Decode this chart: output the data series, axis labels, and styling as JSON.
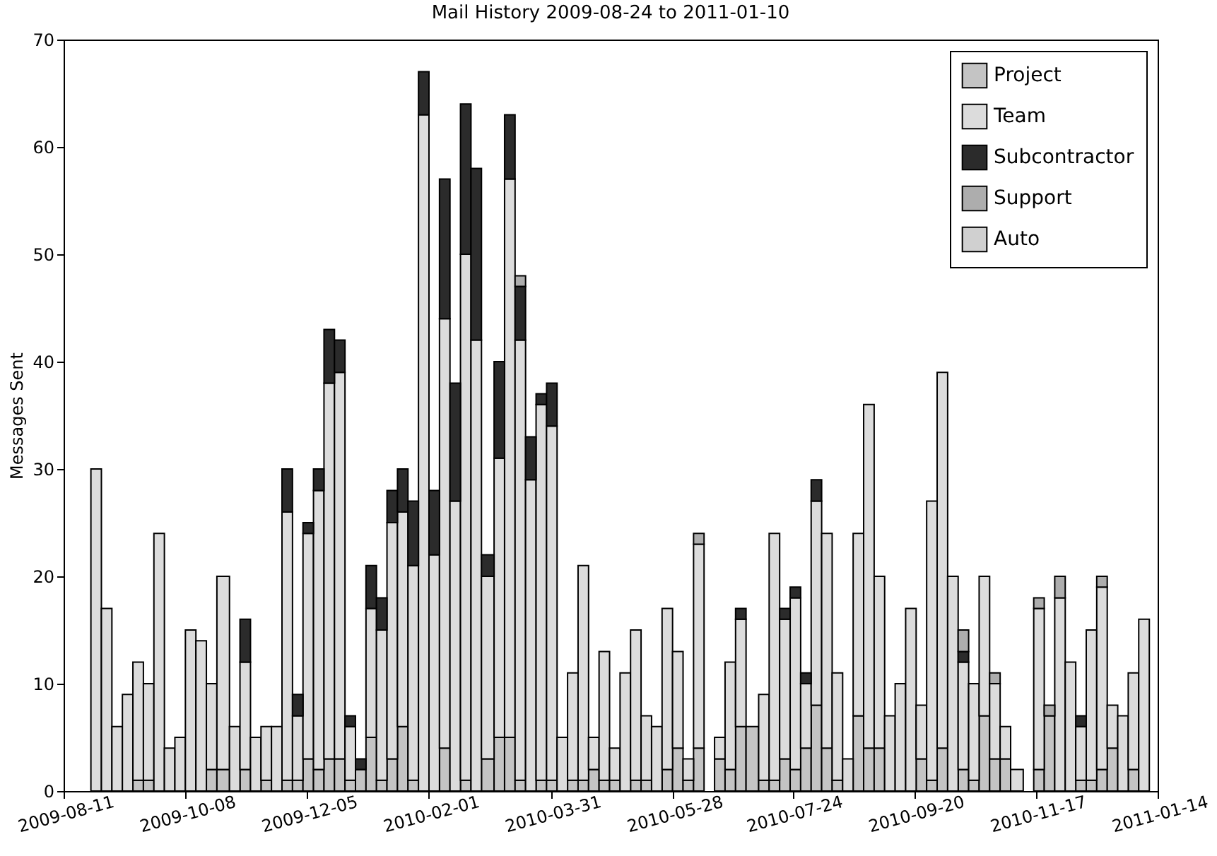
{
  "chart_data": {
    "type": "bar",
    "title": "Mail History 2009-08-24 to 2011-01-10",
    "ylabel": "Messages Sent",
    "stacked": true,
    "legend": "top right",
    "grid": false,
    "x": [
      "2009-08-24",
      "2009-08-29",
      "2009-09-03",
      "2009-09-08",
      "2009-09-13",
      "2009-09-18",
      "2009-09-23",
      "2009-09-28",
      "2009-10-03",
      "2009-10-08",
      "2009-10-13",
      "2009-10-18",
      "2009-10-23",
      "2009-10-29",
      "2009-11-03",
      "2009-11-08",
      "2009-11-13",
      "2009-11-18",
      "2009-11-23",
      "2009-11-28",
      "2009-12-03",
      "2009-12-08",
      "2009-12-13",
      "2009-12-18",
      "2009-12-23",
      "2009-12-28",
      "2010-01-02",
      "2010-01-07",
      "2010-01-12",
      "2010-01-17",
      "2010-01-22",
      "2010-01-27",
      "2010-02-01",
      "2010-02-06",
      "2010-02-11",
      "2010-02-16",
      "2010-02-21",
      "2010-02-26",
      "2010-03-04",
      "2010-03-09",
      "2010-03-14",
      "2010-03-19",
      "2010-03-24",
      "2010-03-29",
      "2010-04-03",
      "2010-04-08",
      "2010-04-13",
      "2010-04-18",
      "2010-04-23",
      "2010-04-28",
      "2010-05-03",
      "2010-05-08",
      "2010-05-13",
      "2010-05-18",
      "2010-05-23",
      "2010-05-28",
      "2010-06-02",
      "2010-06-07",
      "2010-06-12",
      "2010-06-17",
      "2010-06-22",
      "2010-06-27",
      "2010-07-02",
      "2010-07-08",
      "2010-07-13",
      "2010-07-18",
      "2010-07-23",
      "2010-07-28",
      "2010-08-02",
      "2010-08-07",
      "2010-08-12",
      "2010-08-17",
      "2010-08-22",
      "2010-08-27",
      "2010-09-01",
      "2010-09-06",
      "2010-09-11",
      "2010-09-16",
      "2010-09-21",
      "2010-09-26",
      "2010-10-01",
      "2010-10-06",
      "2010-10-11",
      "2010-10-16",
      "2010-10-21",
      "2010-10-26",
      "2010-10-31",
      "2010-11-05",
      "2010-11-11",
      "2010-11-16",
      "2010-11-21",
      "2010-11-26",
      "2010-12-01",
      "2010-12-06",
      "2010-12-11",
      "2010-12-16",
      "2010-12-21",
      "2010-12-26",
      "2010-12-31",
      "2011-01-05"
    ],
    "series": [
      {
        "name": "Project",
        "color": "#c4c4c4",
        "values": [
          0,
          0,
          0,
          0,
          1,
          1,
          0,
          0,
          0,
          0,
          0,
          2,
          2,
          0,
          2,
          0,
          1,
          0,
          1,
          1,
          3,
          2,
          3,
          3,
          1,
          2,
          5,
          1,
          3,
          6,
          1,
          0,
          0,
          4,
          0,
          1,
          0,
          3,
          5,
          5,
          1,
          0,
          1,
          1,
          0,
          1,
          1,
          2,
          1,
          1,
          0,
          1,
          1,
          0,
          2,
          4,
          1,
          4,
          0,
          3,
          2,
          6,
          6,
          1,
          1,
          3,
          2,
          4,
          8,
          4,
          1,
          0,
          7,
          4,
          4,
          0,
          0,
          0,
          3,
          1,
          4,
          0,
          2,
          1,
          7,
          3,
          3,
          0,
          0,
          2,
          7,
          0,
          0,
          1,
          1,
          2,
          4,
          0,
          2,
          0
        ]
      },
      {
        "name": "Team",
        "color": "#dcdcdc",
        "values": [
          30,
          17,
          6,
          9,
          11,
          9,
          24,
          4,
          5,
          15,
          14,
          8,
          18,
          6,
          10,
          5,
          5,
          6,
          25,
          6,
          21,
          26,
          35,
          36,
          5,
          0,
          12,
          14,
          22,
          20,
          20,
          63,
          22,
          40,
          27,
          49,
          42,
          17,
          26,
          52,
          41,
          29,
          35,
          33,
          5,
          10,
          20,
          3,
          12,
          3,
          11,
          14,
          6,
          6,
          15,
          9,
          2,
          19,
          0,
          2,
          10,
          10,
          0,
          8,
          23,
          13,
          16,
          6,
          19,
          20,
          10,
          3,
          17,
          32,
          16,
          7,
          10,
          17,
          5,
          26,
          35,
          20,
          10,
          9,
          13,
          7,
          3,
          2,
          0,
          15,
          0,
          18,
          12,
          5,
          14,
          17,
          4,
          7,
          9,
          16
        ]
      },
      {
        "name": "Subcontractor",
        "color": "#2b2b2b",
        "values": [
          0,
          0,
          0,
          0,
          0,
          0,
          0,
          0,
          0,
          0,
          0,
          0,
          0,
          0,
          4,
          0,
          0,
          0,
          4,
          2,
          1,
          2,
          5,
          3,
          1,
          1,
          4,
          3,
          3,
          4,
          6,
          4,
          6,
          13,
          11,
          14,
          16,
          2,
          9,
          6,
          5,
          4,
          1,
          4,
          0,
          0,
          0,
          0,
          0,
          0,
          0,
          0,
          0,
          0,
          0,
          0,
          0,
          0,
          0,
          0,
          0,
          1,
          0,
          0,
          0,
          1,
          1,
          1,
          2,
          0,
          0,
          0,
          0,
          0,
          0,
          0,
          0,
          0,
          0,
          0,
          0,
          0,
          1,
          0,
          0,
          0,
          0,
          0,
          0,
          0,
          0,
          0,
          0,
          1,
          0,
          0,
          0,
          0,
          0,
          0
        ]
      },
      {
        "name": "Support",
        "color": "#adadad",
        "values": [
          0,
          0,
          0,
          0,
          0,
          0,
          0,
          0,
          0,
          0,
          0,
          0,
          0,
          0,
          0,
          0,
          0,
          0,
          0,
          0,
          0,
          0,
          0,
          0,
          0,
          0,
          0,
          0,
          0,
          0,
          0,
          0,
          0,
          0,
          0,
          0,
          0,
          0,
          0,
          0,
          1,
          0,
          0,
          0,
          0,
          0,
          0,
          0,
          0,
          0,
          0,
          0,
          0,
          0,
          0,
          0,
          0,
          1,
          0,
          0,
          0,
          0,
          0,
          0,
          0,
          0,
          0,
          0,
          0,
          0,
          0,
          0,
          0,
          0,
          0,
          0,
          0,
          0,
          0,
          0,
          0,
          0,
          2,
          0,
          0,
          1,
          0,
          0,
          0,
          1,
          1,
          2,
          0,
          0,
          0,
          1,
          0,
          0,
          0,
          0
        ]
      },
      {
        "name": "Auto",
        "color": "#d0d0d0",
        "values": [
          0,
          0,
          0,
          0,
          0,
          0,
          0,
          0,
          0,
          0,
          0,
          0,
          0,
          0,
          0,
          0,
          0,
          0,
          0,
          0,
          0,
          0,
          0,
          0,
          0,
          0,
          0,
          0,
          0,
          0,
          0,
          0,
          0,
          0,
          0,
          0,
          0,
          0,
          0,
          0,
          0,
          0,
          0,
          0,
          0,
          0,
          0,
          0,
          0,
          0,
          0,
          0,
          0,
          0,
          0,
          0,
          0,
          0,
          0,
          0,
          0,
          0,
          0,
          0,
          0,
          0,
          0,
          0,
          0,
          0,
          0,
          0,
          0,
          0,
          0,
          0,
          0,
          0,
          0,
          0,
          0,
          0,
          0,
          0,
          0,
          0,
          0,
          0,
          0,
          0,
          0,
          0,
          0,
          0,
          0,
          0,
          0,
          0,
          0,
          0
        ]
      }
    ],
    "xlim": [
      "2009-08-11",
      "2011-01-14"
    ],
    "xticks": [
      "2009-08-11",
      "2009-10-08",
      "2009-12-05",
      "2010-02-01",
      "2010-03-31",
      "2010-05-28",
      "2010-07-24",
      "2010-09-20",
      "2010-11-17",
      "2011-01-14"
    ],
    "ylim": [
      0,
      70
    ],
    "yticks": [
      0,
      10,
      20,
      30,
      40,
      50,
      60,
      70
    ]
  }
}
